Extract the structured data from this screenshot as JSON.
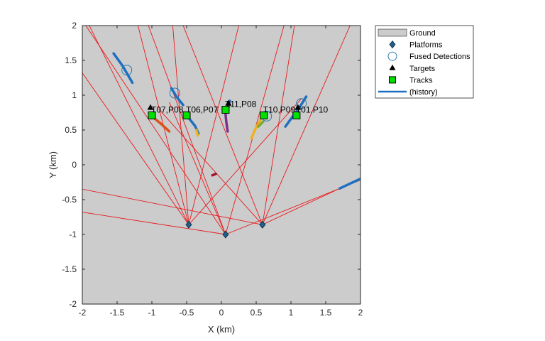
{
  "chart_data": {
    "type": "scatter",
    "xlabel": "X (km)",
    "ylabel": "Y (km)",
    "xlim": [
      -2,
      2
    ],
    "ylim": [
      -2,
      2
    ],
    "xticks": [
      "-2",
      "-1.5",
      "-1",
      "-0.5",
      "0",
      "0.5",
      "1",
      "1.5",
      "2"
    ],
    "yticks": [
      "-2",
      "-1.5",
      "-1",
      "-0.5",
      "0",
      "0.5",
      "1",
      "1.5",
      "2"
    ],
    "grid": false,
    "legend_position": "outside-top-right",
    "legend": [
      {
        "label": "Ground",
        "marker": "patch",
        "color": "#cccccc"
      },
      {
        "label": "Platforms",
        "marker": "diamond",
        "color": "#1f5f8b"
      },
      {
        "label": "Fused Detections",
        "marker": "circle",
        "color": "#2a7ab0"
      },
      {
        "label": "Targets",
        "marker": "triangle",
        "color": "#000000"
      },
      {
        "label": "Tracks",
        "marker": "square",
        "color": "#00e000"
      },
      {
        "label": "(history)",
        "marker": "line",
        "color": "#1f6fc0"
      }
    ],
    "platforms": [
      {
        "x": -0.47,
        "y": -0.86
      },
      {
        "x": 0.06,
        "y": -1.0
      },
      {
        "x": 0.59,
        "y": -0.86
      }
    ],
    "sensor_beams": [
      {
        "platform": 0,
        "ends": [
          [
            -1.9,
            2.0
          ],
          [
            -1.2,
            2.0
          ],
          [
            -0.7,
            2.0
          ],
          [
            -2.0,
            1.32
          ],
          [
            0.25,
            2.0
          ],
          [
            1.15,
            0.95
          ]
        ]
      },
      {
        "platform": 1,
        "ends": [
          [
            -1.95,
            2.0
          ],
          [
            -1.05,
            2.0
          ],
          [
            -2.0,
            -0.68
          ],
          [
            2.0,
            -0.22
          ],
          [
            0.9,
            2.0
          ],
          [
            -0.75,
            0.9
          ]
        ]
      },
      {
        "platform": 2,
        "ends": [
          [
            -0.55,
            2.0
          ],
          [
            1.05,
            2.0
          ],
          [
            1.85,
            2.0
          ],
          [
            -2.0,
            -0.35
          ],
          [
            2.0,
            -0.2
          ],
          [
            -0.9,
            0.8
          ]
        ]
      }
    ],
    "targets": [
      {
        "x": -1.02,
        "y": 0.82
      },
      {
        "x": 0.1,
        "y": 0.88
      },
      {
        "x": 1.1,
        "y": 0.82
      }
    ],
    "fused_detections": [
      {
        "x": -1.36,
        "y": 1.36
      },
      {
        "x": -0.67,
        "y": 1.03
      },
      {
        "x": 0.65,
        "y": 0.7
      },
      {
        "x": 1.15,
        "y": 0.88
      }
    ],
    "tracks": [
      {
        "label": "T07,P08",
        "x": -1.0,
        "y": 0.71
      },
      {
        "label": "T06,P07",
        "x": -0.5,
        "y": 0.71
      },
      {
        "label": "T11,P08",
        "x": 0.06,
        "y": 0.79
      },
      {
        "label": "T10,P09",
        "x": 0.61,
        "y": 0.71
      },
      {
        "label": "T01,P10",
        "x": 1.08,
        "y": 0.71
      }
    ],
    "histories": [
      {
        "color": "#1f6fc0",
        "points": [
          [
            -1.55,
            1.6
          ],
          [
            -1.42,
            1.42
          ],
          [
            -1.28,
            1.18
          ]
        ]
      },
      {
        "color": "#1f6fc0",
        "points": [
          [
            -0.72,
            1.1
          ],
          [
            -0.64,
            0.97
          ],
          [
            -0.55,
            0.86
          ]
        ]
      },
      {
        "color": "#d95319",
        "points": [
          [
            -0.98,
            0.68
          ],
          [
            -0.88,
            0.6
          ],
          [
            -0.75,
            0.48
          ]
        ]
      },
      {
        "color": "#1f6fc0",
        "points": [
          [
            -0.46,
            0.66
          ],
          [
            -0.38,
            0.56
          ],
          [
            -0.33,
            0.45
          ]
        ]
      },
      {
        "color": "#edb120",
        "points": [
          [
            -0.36,
            0.5
          ],
          [
            -0.34,
            0.42
          ]
        ]
      },
      {
        "color": "#7e2f8e",
        "points": [
          [
            0.06,
            0.72
          ],
          [
            0.07,
            0.62
          ],
          [
            0.09,
            0.48
          ]
        ]
      },
      {
        "color": "#1f6fc0",
        "points": [
          [
            0.12,
            0.92
          ],
          [
            0.1,
            0.82
          ]
        ]
      },
      {
        "color": "#edb120",
        "points": [
          [
            0.56,
            0.64
          ],
          [
            0.5,
            0.54
          ],
          [
            0.43,
            0.38
          ]
        ]
      },
      {
        "color": "#77ac30",
        "points": [
          [
            0.6,
            0.62
          ],
          [
            0.53,
            0.55
          ]
        ]
      },
      {
        "color": "#1f6fc0",
        "points": [
          [
            1.22,
            0.98
          ],
          [
            1.12,
            0.82
          ],
          [
            1.0,
            0.66
          ],
          [
            0.92,
            0.55
          ]
        ]
      },
      {
        "color": "#1f6fc0",
        "points": [
          [
            2.0,
            -0.2
          ],
          [
            1.85,
            -0.27
          ],
          [
            1.7,
            -0.34
          ]
        ]
      },
      {
        "color": "#a2142f",
        "points": [
          [
            -0.13,
            -0.15
          ],
          [
            -0.08,
            -0.13
          ]
        ]
      }
    ]
  }
}
